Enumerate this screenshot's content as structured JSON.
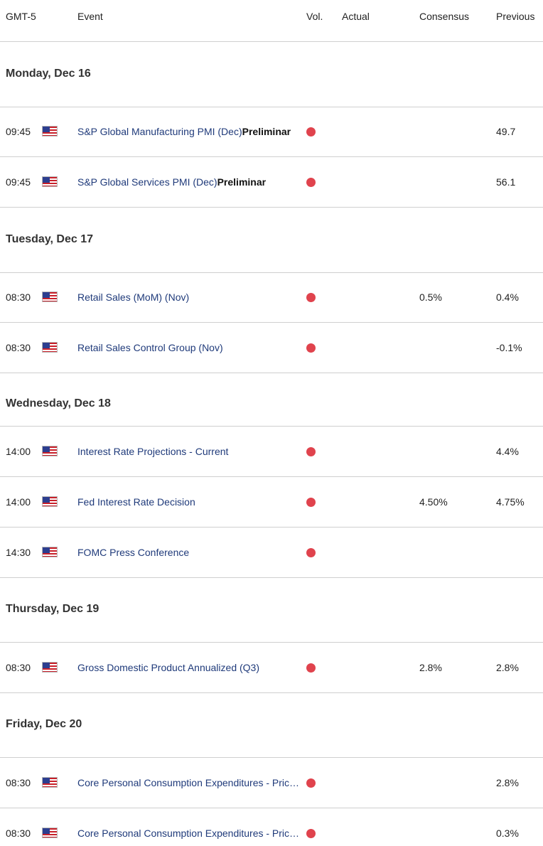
{
  "header": {
    "timezone": "GMT-5",
    "event": "Event",
    "volatility": "Vol.",
    "actual": "Actual",
    "consensus": "Consensus",
    "previous": "Previous"
  },
  "days": [
    {
      "label": "Monday, Dec 16",
      "events": [
        {
          "time": "09:45",
          "country_icon": "us-flag-icon",
          "name": "S&P Global Manufacturing PMI (Dec)",
          "suffix": "Preliminar",
          "actual": "",
          "consensus": "",
          "previous": "49.7"
        },
        {
          "time": "09:45",
          "country_icon": "us-flag-icon",
          "name": "S&P Global Services PMI (Dec)",
          "suffix": "Preliminar",
          "actual": "",
          "consensus": "",
          "previous": "56.1"
        }
      ]
    },
    {
      "label": "Tuesday, Dec 17",
      "events": [
        {
          "time": "08:30",
          "country_icon": "us-flag-icon",
          "name": "Retail Sales (MoM) (Nov)",
          "suffix": "",
          "actual": "",
          "consensus": "0.5%",
          "previous": "0.4%"
        },
        {
          "time": "08:30",
          "country_icon": "us-flag-icon",
          "name": "Retail Sales Control Group (Nov)",
          "suffix": "",
          "actual": "",
          "consensus": "",
          "previous": "-0.1%"
        }
      ]
    },
    {
      "label": "Wednesday, Dec 18",
      "events": [
        {
          "time": "14:00",
          "country_icon": "us-flag-icon",
          "name": "Interest Rate Projections - Current",
          "suffix": "",
          "actual": "",
          "consensus": "",
          "previous": "4.4%"
        },
        {
          "time": "14:00",
          "country_icon": "us-flag-icon",
          "name": "Fed Interest Rate Decision",
          "suffix": "",
          "actual": "",
          "consensus": "4.50%",
          "previous": "4.75%"
        },
        {
          "time": "14:30",
          "country_icon": "us-flag-icon",
          "name": "FOMC Press Conference",
          "suffix": "",
          "actual": "",
          "consensus": "",
          "previous": ""
        }
      ]
    },
    {
      "label": "Thursday, Dec 19",
      "events": [
        {
          "time": "08:30",
          "country_icon": "us-flag-icon",
          "name": "Gross Domestic Product Annualized (Q3)",
          "suffix": "",
          "actual": "",
          "consensus": "2.8%",
          "previous": "2.8%"
        }
      ]
    },
    {
      "label": "Friday, Dec 20",
      "events": [
        {
          "time": "08:30",
          "country_icon": "us-flag-icon",
          "name": "Core Personal Consumption Expenditures - Price Index (YoY) (Nov)",
          "suffix": "",
          "actual": "",
          "consensus": "",
          "previous": "2.8%"
        },
        {
          "time": "08:30",
          "country_icon": "us-flag-icon",
          "name": "Core Personal Consumption Expenditures - Price Index (MoM) (Nov)",
          "suffix": "",
          "actual": "",
          "consensus": "",
          "previous": "0.3%"
        }
      ]
    }
  ],
  "colors": {
    "event_link": "#1f3a7a",
    "volatility_high": "#e0434d",
    "divider": "#cfcfcf"
  }
}
